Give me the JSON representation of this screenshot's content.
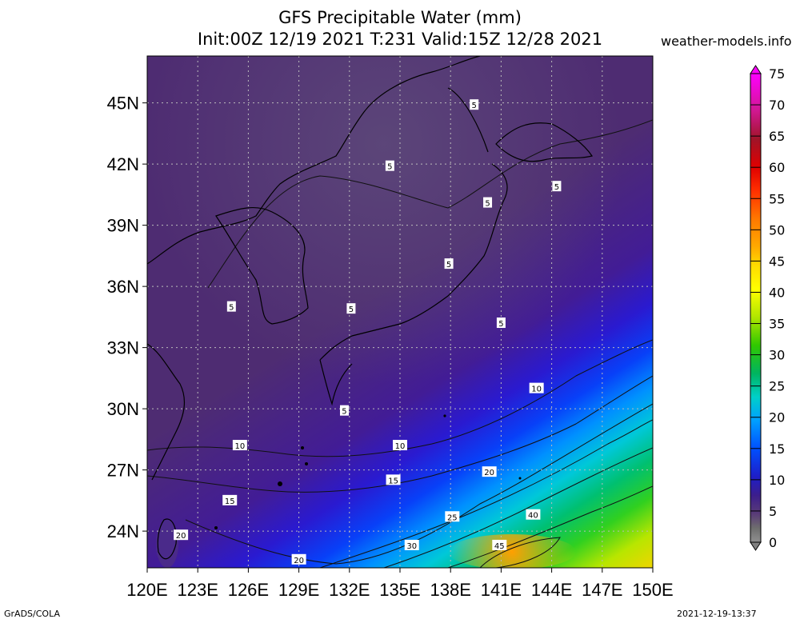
{
  "title_line1": "GFS Precipitable Water (mm)",
  "title_line2": "Init:00Z 12/19 2021 T:231 Valid:15Z 12/28 2021",
  "site": "weather-models.info",
  "footer_left": "GrADS/COLA",
  "footer_right": "2021-12-19-13:37",
  "map": {
    "lon_range": [
      120,
      150
    ],
    "lat_range": [
      22.2,
      47.3
    ],
    "x_ticks": [
      "120E",
      "123E",
      "126E",
      "129E",
      "132E",
      "135E",
      "138E",
      "141E",
      "144E",
      "147E",
      "150E"
    ],
    "y_ticks": [
      "45N",
      "42N",
      "39N",
      "36N",
      "33N",
      "30N",
      "27N",
      "24N"
    ],
    "y_tick_values": [
      45,
      42,
      39,
      36,
      33,
      30,
      27,
      24
    ],
    "contour_labels": [
      {
        "text": "5",
        "lon": 139.4,
        "lat": 44.9
      },
      {
        "text": "5",
        "lon": 134.4,
        "lat": 41.9
      },
      {
        "text": "5",
        "lon": 144.3,
        "lat": 40.9
      },
      {
        "text": "5",
        "lon": 140.2,
        "lat": 40.1
      },
      {
        "text": "5",
        "lon": 137.9,
        "lat": 37.1
      },
      {
        "text": "5",
        "lon": 125.0,
        "lat": 35.0
      },
      {
        "text": "5",
        "lon": 132.1,
        "lat": 34.9
      },
      {
        "text": "5",
        "lon": 141.0,
        "lat": 34.2
      },
      {
        "text": "5",
        "lon": 131.7,
        "lat": 29.9
      },
      {
        "text": "10",
        "lon": 143.1,
        "lat": 31.0
      },
      {
        "text": "10",
        "lon": 125.5,
        "lat": 28.2
      },
      {
        "text": "10",
        "lon": 135.0,
        "lat": 28.2
      },
      {
        "text": "15",
        "lon": 134.6,
        "lat": 26.5
      },
      {
        "text": "15",
        "lon": 124.9,
        "lat": 25.5
      },
      {
        "text": "20",
        "lon": 140.3,
        "lat": 26.9
      },
      {
        "text": "20",
        "lon": 122.0,
        "lat": 23.8
      },
      {
        "text": "20",
        "lon": 129.0,
        "lat": 22.6
      },
      {
        "text": "25",
        "lon": 138.1,
        "lat": 24.7
      },
      {
        "text": "30",
        "lon": 135.7,
        "lat": 23.3
      },
      {
        "text": "40",
        "lon": 142.9,
        "lat": 24.8
      },
      {
        "text": "45",
        "lon": 140.9,
        "lat": 23.3
      }
    ]
  },
  "colorbar": {
    "labels": [
      "75",
      "70",
      "65",
      "60",
      "55",
      "50",
      "45",
      "40",
      "35",
      "30",
      "25",
      "20",
      "15",
      "10",
      "5",
      "0"
    ],
    "colors": [
      "#ff00ff",
      "#e01890",
      "#b02028",
      "#c80000",
      "#ff1e00",
      "#ff6400",
      "#ff9600",
      "#ffc800",
      "#ffff00",
      "#b4e600",
      "#50d200",
      "#00b432",
      "#00c8a0",
      "#00c8ff",
      "#0096ff",
      "#0050ff",
      "#0028e6",
      "#1e1eb4",
      "#3c1e96",
      "#4b2878",
      "#5a3c78",
      "#646464",
      "#808080"
    ]
  }
}
